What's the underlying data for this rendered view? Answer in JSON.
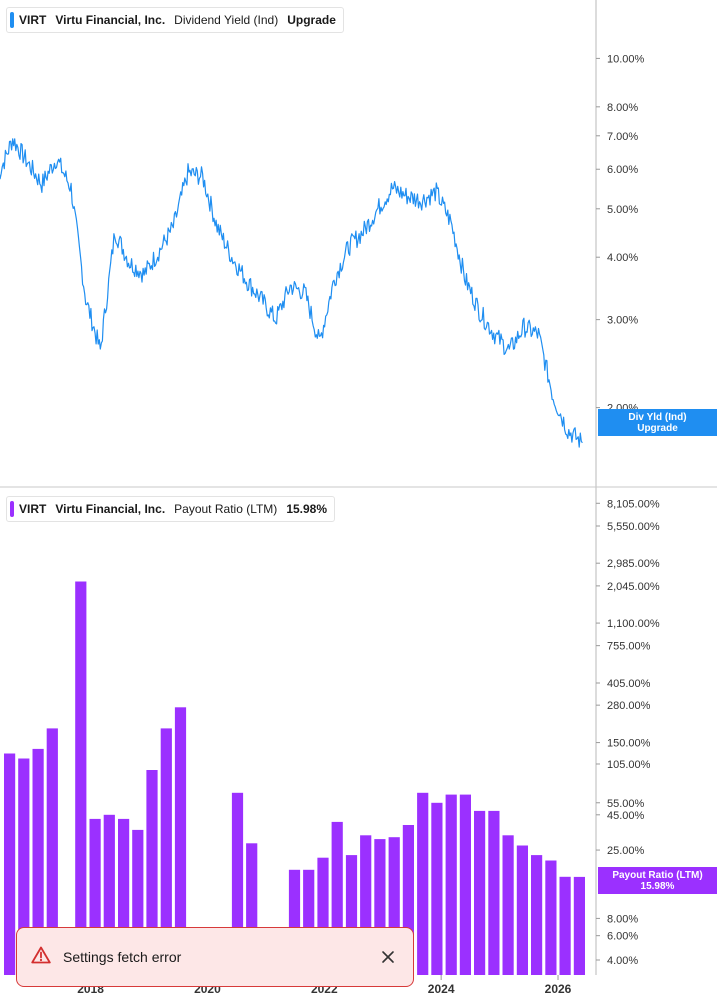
{
  "panels": {
    "top": {
      "legend": {
        "ticker": "VIRT",
        "company": "Virtu Financial, Inc.",
        "metric": "Dividend Yield (Ind)",
        "value": "Upgrade"
      },
      "tag": {
        "line1": "Div Yld (Ind)",
        "line2": "Upgrade"
      }
    },
    "bottom": {
      "legend": {
        "ticker": "VIRT",
        "company": "Virtu Financial, Inc.",
        "metric": "Payout Ratio (LTM)",
        "value": "15.98%"
      },
      "tag": {
        "line1": "Payout Ratio (LTM)",
        "line2": "15.98%"
      }
    }
  },
  "toast": {
    "message": "Settings fetch error",
    "icon": "warning-icon",
    "close_icon": "close-icon"
  },
  "colors": {
    "line": "#1f8ef1",
    "bars": "#9b30ff",
    "tag_top": "#1f8ef1",
    "tag_bottom": "#9b30ff",
    "toast_border": "#d73a3a",
    "toast_bg": "#fde7e7"
  },
  "chart_data": [
    {
      "type": "line",
      "series": [
        {
          "x": [
            "2016-06",
            "2016-09",
            "2016-12",
            "2017-03",
            "2017-06",
            "2017-09",
            "2017-12",
            "2018-03",
            "2018-06",
            "2018-09",
            "2018-12",
            "2019-03",
            "2019-06",
            "2019-09",
            "2019-12",
            "2020-03",
            "2020-06",
            "2020-09",
            "2020-12",
            "2021-03",
            "2021-06",
            "2021-09",
            "2021-12",
            "2022-03",
            "2022-06",
            "2022-09",
            "2022-12",
            "2023-03",
            "2023-06",
            "2023-09",
            "2023-12",
            "2024-03",
            "2024-06",
            "2024-09",
            "2024-12",
            "2025-03",
            "2025-06",
            "2025-09",
            "2025-12",
            "2026-03",
            "2026-06"
          ],
          "y": [
            5.8,
            6.9,
            6.2,
            5.6,
            6.3,
            5.5,
            3.3,
            2.6,
            4.5,
            3.9,
            3.7,
            4.1,
            4.6,
            5.9,
            5.8,
            4.6,
            4.0,
            3.6,
            3.3,
            3.0,
            3.5,
            3.4,
            2.7,
            3.6,
            4.2,
            4.5,
            5.0,
            5.5,
            5.3,
            5.2,
            5.4,
            4.7,
            3.6,
            3.1,
            2.8,
            2.6,
            2.9,
            2.8,
            2.1,
            1.8,
            1.7
          ]
        }
      ],
      "yscale": "log",
      "y_ticks": [
        "10.00%",
        "8.00%",
        "7.00%",
        "6.00%",
        "5.00%",
        "4.00%",
        "3.00%",
        "2.00%"
      ],
      "ylim": [
        1.5,
        12.5
      ]
    },
    {
      "type": "bar",
      "categories": [
        "2016 Q2",
        "2016 Q3",
        "2016 Q4",
        "2017 Q1",
        "2017 Q2",
        "2017 Q3",
        "2017 Q4",
        "2018 Q1",
        "2018 Q2",
        "2018 Q3",
        "2018 Q4",
        "2019 Q1",
        "2019 Q2",
        "2019 Q3",
        "2019 Q4",
        "2020 Q1",
        "2020 Q2",
        "2020 Q3",
        "2020 Q4",
        "2021 Q1",
        "2021 Q2",
        "2021 Q3",
        "2021 Q4",
        "2022 Q1",
        "2022 Q2",
        "2022 Q3",
        "2022 Q4",
        "2023 Q1",
        "2023 Q2",
        "2023 Q3",
        "2023 Q4",
        "2024 Q1",
        "2024 Q2",
        "2024 Q3",
        "2024 Q4",
        "2025 Q1",
        "2025 Q2",
        "2025 Q3",
        "2025 Q4",
        "2026 Q1",
        "2026 Q2"
      ],
      "values": [
        125,
        115,
        135,
        190,
        null,
        2200,
        42,
        45,
        42,
        35,
        95,
        190,
        270,
        null,
        null,
        null,
        65,
        28,
        null,
        null,
        18,
        18,
        22,
        40,
        23,
        32,
        30,
        31,
        38,
        65,
        55,
        63,
        63,
        48,
        48,
        32,
        27,
        23,
        21,
        16,
        15.98
      ],
      "yscale": "log",
      "y_ticks": [
        "8,105.00%",
        "5,550.00%",
        "2,985.00%",
        "2,045.00%",
        "1,100.00%",
        "755.00%",
        "405.00%",
        "280.00%",
        "150.00%",
        "105.00%",
        "55.00%",
        "45.00%",
        "25.00%",
        "8.00%",
        "6.00%",
        "4.00%"
      ],
      "ylim": [
        3.5,
        9000
      ]
    }
  ],
  "x_axis": {
    "ticks": [
      "2018",
      "2020",
      "2022",
      "2024",
      "2026"
    ]
  }
}
